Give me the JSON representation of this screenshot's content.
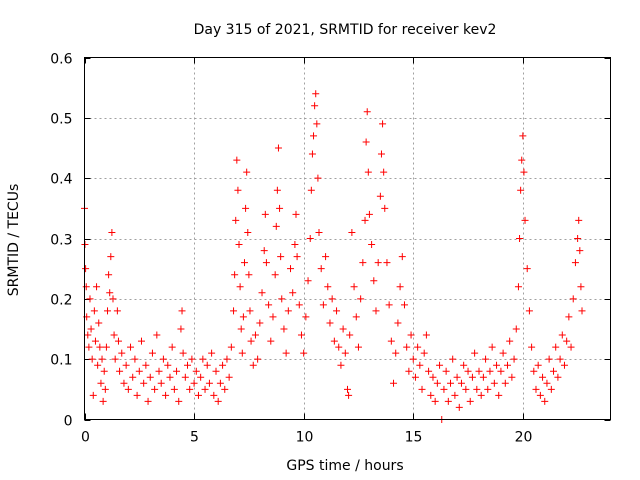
{
  "chart_data": {
    "type": "scatter",
    "title": "Day 315 of 2021, SRMTID for receiver kev2",
    "xlabel": "GPS time / hours",
    "ylabel": "SRMTID / TECUs",
    "xlim": [
      0,
      24
    ],
    "ylim": [
      0,
      0.6
    ],
    "xticks": [
      "0",
      "5",
      "10",
      "15",
      "20"
    ],
    "yticks": [
      "0",
      "0.1",
      "0.2",
      "0.3",
      "0.4",
      "0.5",
      "0.6"
    ],
    "grid": true,
    "marker": "+",
    "series": [
      {
        "name": "SRMTID",
        "color": "#ff0000",
        "points": [
          [
            0.0,
            0.35
          ],
          [
            0.02,
            0.29
          ],
          [
            0.05,
            0.25
          ],
          [
            0.08,
            0.22
          ],
          [
            0.1,
            0.17
          ],
          [
            0.15,
            0.14
          ],
          [
            0.2,
            0.12
          ],
          [
            0.25,
            0.2
          ],
          [
            0.3,
            0.15
          ],
          [
            0.35,
            0.1
          ],
          [
            0.4,
            0.04
          ],
          [
            0.45,
            0.18
          ],
          [
            0.5,
            0.13
          ],
          [
            0.55,
            0.22
          ],
          [
            0.6,
            0.09
          ],
          [
            0.65,
            0.16
          ],
          [
            0.7,
            0.12
          ],
          [
            0.75,
            0.06
          ],
          [
            0.8,
            0.1
          ],
          [
            0.85,
            0.03
          ],
          [
            0.9,
            0.08
          ],
          [
            0.95,
            0.05
          ],
          [
            1.0,
            0.12
          ],
          [
            1.05,
            0.18
          ],
          [
            1.1,
            0.24
          ],
          [
            1.15,
            0.21
          ],
          [
            1.2,
            0.27
          ],
          [
            1.25,
            0.31
          ],
          [
            1.3,
            0.2
          ],
          [
            1.35,
            0.14
          ],
          [
            1.4,
            0.1
          ],
          [
            1.5,
            0.18
          ],
          [
            1.55,
            0.13
          ],
          [
            1.6,
            0.08
          ],
          [
            1.7,
            0.11
          ],
          [
            1.8,
            0.06
          ],
          [
            1.9,
            0.09
          ],
          [
            2.0,
            0.05
          ],
          [
            2.1,
            0.12
          ],
          [
            2.2,
            0.07
          ],
          [
            2.3,
            0.1
          ],
          [
            2.4,
            0.04
          ],
          [
            2.5,
            0.08
          ],
          [
            2.6,
            0.13
          ],
          [
            2.7,
            0.06
          ],
          [
            2.8,
            0.09
          ],
          [
            2.9,
            0.03
          ],
          [
            3.0,
            0.07
          ],
          [
            3.1,
            0.11
          ],
          [
            3.2,
            0.05
          ],
          [
            3.3,
            0.14
          ],
          [
            3.4,
            0.08
          ],
          [
            3.5,
            0.06
          ],
          [
            3.6,
            0.1
          ],
          [
            3.7,
            0.04
          ],
          [
            3.8,
            0.09
          ],
          [
            3.9,
            0.07
          ],
          [
            4.0,
            0.12
          ],
          [
            4.1,
            0.05
          ],
          [
            4.2,
            0.08
          ],
          [
            4.3,
            0.03
          ],
          [
            4.4,
            0.15
          ],
          [
            4.45,
            0.18
          ],
          [
            4.5,
            0.11
          ],
          [
            4.6,
            0.07
          ],
          [
            4.7,
            0.09
          ],
          [
            4.8,
            0.05
          ],
          [
            4.9,
            0.1
          ],
          [
            5.0,
            0.06
          ],
          [
            5.1,
            0.08
          ],
          [
            5.2,
            0.04
          ],
          [
            5.3,
            0.07
          ],
          [
            5.4,
            0.1
          ],
          [
            5.5,
            0.05
          ],
          [
            5.6,
            0.09
          ],
          [
            5.7,
            0.06
          ],
          [
            5.8,
            0.11
          ],
          [
            5.9,
            0.04
          ],
          [
            6.0,
            0.08
          ],
          [
            6.1,
            0.03
          ],
          [
            6.2,
            0.06
          ],
          [
            6.3,
            0.09
          ],
          [
            6.4,
            0.05
          ],
          [
            6.5,
            0.1
          ],
          [
            6.6,
            0.07
          ],
          [
            6.7,
            0.12
          ],
          [
            6.8,
            0.18
          ],
          [
            6.85,
            0.24
          ],
          [
            6.9,
            0.33
          ],
          [
            6.95,
            0.43
          ],
          [
            7.0,
            0.38
          ],
          [
            7.05,
            0.29
          ],
          [
            7.1,
            0.22
          ],
          [
            7.15,
            0.15
          ],
          [
            7.2,
            0.11
          ],
          [
            7.25,
            0.17
          ],
          [
            7.3,
            0.26
          ],
          [
            7.35,
            0.35
          ],
          [
            7.4,
            0.41
          ],
          [
            7.45,
            0.31
          ],
          [
            7.5,
            0.24
          ],
          [
            7.55,
            0.18
          ],
          [
            7.6,
            0.13
          ],
          [
            7.7,
            0.09
          ],
          [
            7.8,
            0.14
          ],
          [
            7.9,
            0.1
          ],
          [
            8.0,
            0.16
          ],
          [
            8.1,
            0.21
          ],
          [
            8.2,
            0.28
          ],
          [
            8.25,
            0.34
          ],
          [
            8.3,
            0.26
          ],
          [
            8.4,
            0.19
          ],
          [
            8.5,
            0.13
          ],
          [
            8.6,
            0.17
          ],
          [
            8.7,
            0.24
          ],
          [
            8.75,
            0.32
          ],
          [
            8.8,
            0.38
          ],
          [
            8.85,
            0.45
          ],
          [
            8.9,
            0.35
          ],
          [
            8.95,
            0.27
          ],
          [
            9.0,
            0.2
          ],
          [
            9.1,
            0.15
          ],
          [
            9.2,
            0.11
          ],
          [
            9.3,
            0.18
          ],
          [
            9.4,
            0.25
          ],
          [
            9.5,
            0.21
          ],
          [
            9.6,
            0.29
          ],
          [
            9.65,
            0.34
          ],
          [
            9.7,
            0.27
          ],
          [
            9.8,
            0.19
          ],
          [
            9.9,
            0.14
          ],
          [
            10.0,
            0.11
          ],
          [
            10.1,
            0.17
          ],
          [
            10.2,
            0.23
          ],
          [
            10.3,
            0.3
          ],
          [
            10.35,
            0.38
          ],
          [
            10.4,
            0.44
          ],
          [
            10.45,
            0.47
          ],
          [
            10.5,
            0.52
          ],
          [
            10.55,
            0.54
          ],
          [
            10.6,
            0.49
          ],
          [
            10.65,
            0.4
          ],
          [
            10.7,
            0.31
          ],
          [
            10.8,
            0.25
          ],
          [
            10.9,
            0.19
          ],
          [
            11.0,
            0.27
          ],
          [
            11.1,
            0.22
          ],
          [
            11.2,
            0.16
          ],
          [
            11.3,
            0.2
          ],
          [
            11.4,
            0.13
          ],
          [
            11.5,
            0.18
          ],
          [
            11.6,
            0.12
          ],
          [
            11.7,
            0.09
          ],
          [
            11.8,
            0.15
          ],
          [
            11.9,
            0.11
          ],
          [
            12.0,
            0.05
          ],
          [
            12.05,
            0.04
          ],
          [
            12.1,
            0.14
          ],
          [
            12.2,
            0.31
          ],
          [
            12.3,
            0.22
          ],
          [
            12.4,
            0.17
          ],
          [
            12.5,
            0.12
          ],
          [
            12.6,
            0.2
          ],
          [
            12.7,
            0.26
          ],
          [
            12.8,
            0.33
          ],
          [
            12.85,
            0.46
          ],
          [
            12.9,
            0.51
          ],
          [
            12.95,
            0.41
          ],
          [
            13.0,
            0.34
          ],
          [
            13.1,
            0.29
          ],
          [
            13.2,
            0.23
          ],
          [
            13.3,
            0.18
          ],
          [
            13.4,
            0.26
          ],
          [
            13.5,
            0.37
          ],
          [
            13.55,
            0.44
          ],
          [
            13.6,
            0.49
          ],
          [
            13.65,
            0.41
          ],
          [
            13.7,
            0.35
          ],
          [
            13.8,
            0.26
          ],
          [
            13.9,
            0.19
          ],
          [
            14.0,
            0.13
          ],
          [
            14.1,
            0.06
          ],
          [
            14.2,
            0.11
          ],
          [
            14.3,
            0.16
          ],
          [
            14.4,
            0.22
          ],
          [
            14.5,
            0.27
          ],
          [
            14.6,
            0.19
          ],
          [
            14.7,
            0.12
          ],
          [
            14.8,
            0.08
          ],
          [
            14.9,
            0.14
          ],
          [
            15.0,
            0.1
          ],
          [
            15.1,
            0.07
          ],
          [
            15.2,
            0.12
          ],
          [
            15.3,
            0.09
          ],
          [
            15.4,
            0.05
          ],
          [
            15.5,
            0.11
          ],
          [
            15.6,
            0.14
          ],
          [
            15.7,
            0.08
          ],
          [
            15.8,
            0.04
          ],
          [
            15.9,
            0.07
          ],
          [
            16.0,
            0.03
          ],
          [
            16.1,
            0.06
          ],
          [
            16.2,
            0.09
          ],
          [
            16.3,
            0.0
          ],
          [
            16.4,
            0.05
          ],
          [
            16.5,
            0.08
          ],
          [
            16.6,
            0.03
          ],
          [
            16.7,
            0.06
          ],
          [
            16.8,
            0.1
          ],
          [
            16.9,
            0.04
          ],
          [
            17.0,
            0.07
          ],
          [
            17.1,
            0.02
          ],
          [
            17.2,
            0.06
          ],
          [
            17.3,
            0.09
          ],
          [
            17.4,
            0.05
          ],
          [
            17.5,
            0.08
          ],
          [
            17.6,
            0.03
          ],
          [
            17.7,
            0.07
          ],
          [
            17.8,
            0.11
          ],
          [
            17.9,
            0.05
          ],
          [
            18.0,
            0.08
          ],
          [
            18.1,
            0.04
          ],
          [
            18.2,
            0.07
          ],
          [
            18.3,
            0.1
          ],
          [
            18.4,
            0.05
          ],
          [
            18.5,
            0.08
          ],
          [
            18.6,
            0.12
          ],
          [
            18.7,
            0.06
          ],
          [
            18.8,
            0.09
          ],
          [
            18.9,
            0.04
          ],
          [
            19.0,
            0.08
          ],
          [
            19.1,
            0.11
          ],
          [
            19.2,
            0.06
          ],
          [
            19.3,
            0.09
          ],
          [
            19.4,
            0.13
          ],
          [
            19.5,
            0.07
          ],
          [
            19.6,
            0.1
          ],
          [
            19.7,
            0.15
          ],
          [
            19.8,
            0.22
          ],
          [
            19.85,
            0.3
          ],
          [
            19.9,
            0.38
          ],
          [
            19.95,
            0.43
          ],
          [
            20.0,
            0.47
          ],
          [
            20.05,
            0.41
          ],
          [
            20.1,
            0.33
          ],
          [
            20.2,
            0.25
          ],
          [
            20.3,
            0.18
          ],
          [
            20.4,
            0.12
          ],
          [
            20.5,
            0.08
          ],
          [
            20.6,
            0.05
          ],
          [
            20.7,
            0.09
          ],
          [
            20.8,
            0.04
          ],
          [
            20.9,
            0.07
          ],
          [
            21.0,
            0.03
          ],
          [
            21.1,
            0.06
          ],
          [
            21.2,
            0.1
          ],
          [
            21.3,
            0.05
          ],
          [
            21.4,
            0.08
          ],
          [
            21.5,
            0.12
          ],
          [
            21.6,
            0.07
          ],
          [
            21.7,
            0.1
          ],
          [
            21.8,
            0.14
          ],
          [
            21.9,
            0.09
          ],
          [
            22.0,
            0.13
          ],
          [
            22.1,
            0.17
          ],
          [
            22.2,
            0.12
          ],
          [
            22.3,
            0.2
          ],
          [
            22.4,
            0.26
          ],
          [
            22.5,
            0.3
          ],
          [
            22.55,
            0.33
          ],
          [
            22.6,
            0.28
          ],
          [
            22.65,
            0.22
          ],
          [
            22.7,
            0.18
          ]
        ]
      }
    ]
  }
}
